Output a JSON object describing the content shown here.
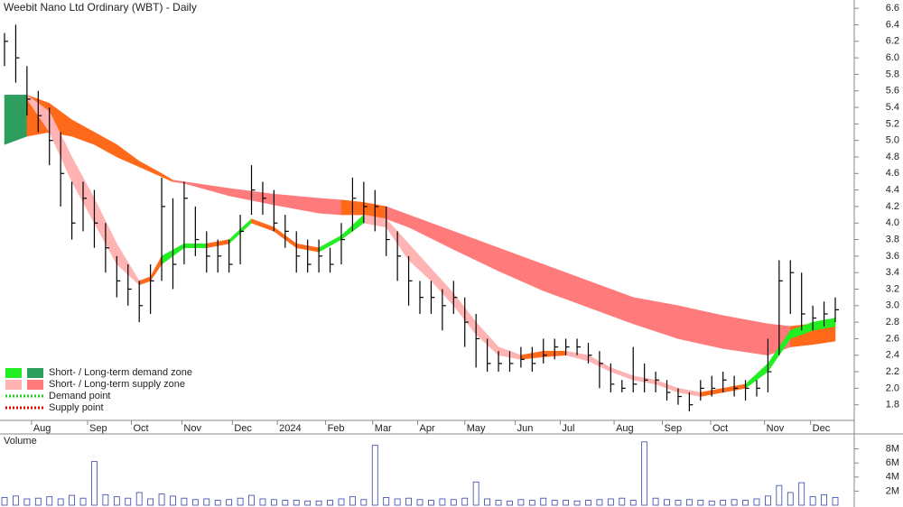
{
  "chart_data": {
    "type": "ohlc",
    "title": "Weebit Nano Ltd Ordinary (WBT) - Daily",
    "xlim": [
      0,
      74
    ],
    "xticks": [
      {
        "value": 2.4,
        "label": "Aug"
      },
      {
        "value": 7.4,
        "label": "Sep"
      },
      {
        "value": 11.3,
        "label": "Oct"
      },
      {
        "value": 15.8,
        "label": "Nov"
      },
      {
        "value": 20.3,
        "label": "Dec"
      },
      {
        "value": 24.3,
        "label": "2024"
      },
      {
        "value": 28.6,
        "label": "Feb"
      },
      {
        "value": 32.8,
        "label": "Mar"
      },
      {
        "value": 36.8,
        "label": "Apr"
      },
      {
        "value": 41,
        "label": "May"
      },
      {
        "value": 45.5,
        "label": "Jun"
      },
      {
        "value": 49.5,
        "label": "Jul"
      },
      {
        "value": 54.3,
        "label": "Aug"
      },
      {
        "value": 58.6,
        "label": "Sep"
      },
      {
        "value": 62.9,
        "label": "Oct"
      },
      {
        "value": 67.7,
        "label": "Nov"
      },
      {
        "value": 71.8,
        "label": "Dec"
      }
    ],
    "ylim": [
      1.6,
      6.7
    ],
    "yticks": [
      1.8,
      {
        "value": 2,
        "label": "2.0"
      },
      2.2,
      2.4,
      2.6,
      2.8,
      {
        "value": 3,
        "label": "3.0"
      },
      3.2,
      3.4,
      3.6,
      3.8,
      {
        "value": 4,
        "label": "4.0"
      },
      4.2,
      4.4,
      4.6,
      4.8,
      {
        "value": 5,
        "label": "5.0"
      },
      5.2,
      5.4,
      5.6,
      5.8,
      {
        "value": 6,
        "label": "6.0"
      },
      6.2,
      6.4,
      6.6
    ],
    "price_color": "#000000",
    "high": [
      6.3,
      6.4,
      5.9,
      5.6,
      5.4,
      5.1,
      4.5,
      4.5,
      4.4,
      4.0,
      3.6,
      3.5,
      3.3,
      3.5,
      4.55,
      4.3,
      4.5,
      4.2,
      3.9,
      3.8,
      3.8,
      4.1,
      4.7,
      4.5,
      4.4,
      4.1,
      3.9,
      3.8,
      3.8,
      3.7,
      4.0,
      4.55,
      4.5,
      4.4,
      4.2,
      3.9,
      3.6,
      3.3,
      3.3,
      3.2,
      3.3,
      3.1,
      2.9,
      2.6,
      2.45,
      2.45,
      2.5,
      2.5,
      2.6,
      2.6,
      2.6,
      2.6,
      2.55,
      2.45,
      2.3,
      2.1,
      2.5,
      2.3,
      2.2,
      2.1,
      2.0,
      1.95,
      2.1,
      2.15,
      2.2,
      2.15,
      2.1,
      2.1,
      2.6,
      3.55,
      3.55,
      3.4,
      3.0,
      3.05,
      3.1
    ],
    "low": [
      5.9,
      5.7,
      5.3,
      5.1,
      4.7,
      4.2,
      3.8,
      3.9,
      3.7,
      3.4,
      3.1,
      3.0,
      2.8,
      2.9,
      3.3,
      3.2,
      3.5,
      3.6,
      3.4,
      3.4,
      3.4,
      3.5,
      4.1,
      4.1,
      3.9,
      3.7,
      3.4,
      3.4,
      3.4,
      3.4,
      3.5,
      3.9,
      4.0,
      3.9,
      3.6,
      3.3,
      3.0,
      2.9,
      2.9,
      2.7,
      2.9,
      2.5,
      2.25,
      2.2,
      2.2,
      2.2,
      2.25,
      2.2,
      2.3,
      2.35,
      2.4,
      2.4,
      2.3,
      2.0,
      1.95,
      1.95,
      1.95,
      1.95,
      1.95,
      1.85,
      1.8,
      1.72,
      1.85,
      1.9,
      1.95,
      1.9,
      1.85,
      1.9,
      1.95,
      2.4,
      2.9,
      2.7,
      2.7,
      2.75,
      2.8
    ],
    "close": [
      6.2,
      6.0,
      5.5,
      5.3,
      5.0,
      4.6,
      4.0,
      4.3,
      4.0,
      3.7,
      3.3,
      3.2,
      3.0,
      3.3,
      4.2,
      3.5,
      4.3,
      3.8,
      3.6,
      3.6,
      3.5,
      3.9,
      4.4,
      4.3,
      4.0,
      3.9,
      3.6,
      3.5,
      3.6,
      3.5,
      3.8,
      4.3,
      4.2,
      4.2,
      3.8,
      3.6,
      3.3,
      3.1,
      3.1,
      3.0,
      3.1,
      2.8,
      2.6,
      2.3,
      2.3,
      2.3,
      2.35,
      2.3,
      2.4,
      2.5,
      2.5,
      2.5,
      2.4,
      2.3,
      2.05,
      2.0,
      2.05,
      2.1,
      2.1,
      1.95,
      1.9,
      1.8,
      2.0,
      2.0,
      2.1,
      2.0,
      2.0,
      2.0,
      2.2,
      3.3,
      3.4,
      2.9,
      2.85,
      2.9,
      2.95
    ],
    "bands": [
      {
        "x": [
          0,
          2,
          4,
          6,
          8,
          10,
          12,
          14,
          15,
          16,
          20,
          24,
          28,
          30,
          32,
          34,
          36,
          40,
          44,
          48,
          52,
          56,
          60,
          64,
          68,
          70,
          72,
          74
        ],
        "upper": [
          5.55,
          5.55,
          5.45,
          5.25,
          5.1,
          4.95,
          4.75,
          4.6,
          4.52,
          4.5,
          4.42,
          4.35,
          4.3,
          4.28,
          4.25,
          4.2,
          4.1,
          3.9,
          3.7,
          3.5,
          3.3,
          3.1,
          3.0,
          2.88,
          2.78,
          2.75,
          2.78,
          2.8
        ],
        "lower": [
          4.95,
          5.05,
          5.1,
          5.05,
          4.95,
          4.8,
          4.68,
          4.56,
          4.5,
          4.48,
          4.33,
          4.22,
          4.12,
          4.1,
          4.1,
          4.05,
          3.95,
          3.68,
          3.42,
          3.18,
          2.98,
          2.78,
          2.6,
          2.48,
          2.4,
          2.5,
          2.53,
          2.57
        ],
        "colors": [
          "#2e9e5e",
          "#ff6a1a",
          "#ff6a1a",
          "#ff6a1a",
          "#ff6a1a",
          "#ff6a1a",
          "#ff6a1a",
          "#ff6a1a",
          "#ff7b7b",
          "#ff7b7b",
          "#ff7b7b",
          "#ff7b7b",
          "#ff7b7b",
          "#ff6a1a",
          "#ff6a1a",
          "#ff7b7b",
          "#ff7b7b",
          "#ff7b7b",
          "#ff7b7b",
          "#ff7b7b",
          "#ff7b7b",
          "#ff7b7b",
          "#ff7b7b",
          "#ff7b7b",
          "#ff7b7b",
          "#ff6a1a",
          "#ff6a1a"
        ]
      },
      {
        "x": [
          2,
          4,
          6,
          8,
          10,
          12,
          13,
          14,
          16,
          18,
          20,
          22,
          24,
          26,
          28,
          30,
          32,
          34,
          36,
          38,
          40,
          42,
          44,
          46,
          48,
          50,
          52,
          54,
          56,
          58,
          60,
          62,
          64,
          66,
          68,
          70,
          72,
          74
        ],
        "upper": [
          5.55,
          5.35,
          4.8,
          4.3,
          3.75,
          3.3,
          3.35,
          3.6,
          3.75,
          3.75,
          3.8,
          4.05,
          3.95,
          3.75,
          3.7,
          3.85,
          4.1,
          4.05,
          3.75,
          3.45,
          3.15,
          2.8,
          2.5,
          2.4,
          2.45,
          2.45,
          2.4,
          2.25,
          2.15,
          2.1,
          2.0,
          1.95,
          2.0,
          2.05,
          2.3,
          2.7,
          2.8,
          2.85
        ],
        "lower": [
          5.5,
          5.1,
          4.5,
          4.0,
          3.5,
          3.25,
          3.3,
          3.5,
          3.7,
          3.7,
          3.75,
          4.0,
          3.9,
          3.7,
          3.65,
          3.8,
          4.0,
          3.95,
          3.55,
          3.3,
          3.0,
          2.65,
          2.4,
          2.35,
          2.38,
          2.4,
          2.33,
          2.2,
          2.1,
          2.05,
          1.95,
          1.9,
          1.95,
          2.0,
          2.2,
          2.6,
          2.7,
          2.75
        ],
        "colors": [
          "#ffb3b3",
          "#ffb3b3",
          "#ffb3b3",
          "#ffb3b3",
          "#ffb3b3",
          "#ff6a1a",
          "#ff6a1a",
          "#22ee22",
          "#22ee22",
          "#ff6a1a",
          "#22ee22",
          "#ff6a1a",
          "#ff6a1a",
          "#ff6a1a",
          "#22ee22",
          "#22ee22",
          "#ffb3b3",
          "#ffb3b3",
          "#ffb3b3",
          "#ffb3b3",
          "#ffb3b3",
          "#ffb3b3",
          "#ffb3b3",
          "#ff6a1a",
          "#ff6a1a",
          "#ffb3b3",
          "#ffb3b3",
          "#ffb3b3",
          "#ffb3b3",
          "#ffb3b3",
          "#ffb3b3",
          "#ff6a1a",
          "#ff6a1a",
          "#22ee22",
          "#22ee22",
          "#22ee22",
          "#22ee22"
        ]
      }
    ],
    "legend": [
      {
        "label": "Short- / Long-term demand zone",
        "colors": [
          "#22ee22",
          "#2e9e5e"
        ]
      },
      {
        "label": "Short- / Long-term supply zone",
        "colors": [
          "#ffb3b3",
          "#ff7b7b"
        ]
      },
      {
        "label": "Demand point",
        "colors": [
          "#22cc22"
        ]
      },
      {
        "label": "Supply point",
        "colors": [
          "#dd0000"
        ]
      }
    ],
    "volume": {
      "title": "Volume",
      "color": "#3344aa",
      "ylim": [
        0,
        10000000
      ],
      "yticks": [
        {
          "value": 2000000,
          "label": "2M"
        },
        {
          "value": 4000000,
          "label": "4M"
        },
        {
          "value": 6000000,
          "label": "6M"
        },
        {
          "value": 8000000,
          "label": "8M"
        }
      ],
      "values": [
        1100000,
        1300000,
        900000,
        1000000,
        1200000,
        900000,
        1400000,
        1000000,
        6200000,
        1500000,
        1200000,
        1000000,
        1800000,
        900000,
        1600000,
        1300000,
        1000000,
        800000,
        900000,
        700000,
        800000,
        1000000,
        1400000,
        900000,
        800000,
        700000,
        700000,
        600000,
        600000,
        700000,
        900000,
        1200000,
        800000,
        8500000,
        1100000,
        900000,
        1000000,
        800000,
        700000,
        900000,
        800000,
        1000000,
        3300000,
        900000,
        700000,
        600000,
        800000,
        700000,
        1000000,
        700000,
        700000,
        600000,
        700000,
        800000,
        900000,
        1000000,
        700000,
        9000000,
        1000000,
        800000,
        700000,
        800000,
        700000,
        600000,
        700000,
        800000,
        700000,
        900000,
        1300000,
        2800000,
        1800000,
        3200000,
        1200000,
        1500000,
        1100000
      ]
    }
  }
}
